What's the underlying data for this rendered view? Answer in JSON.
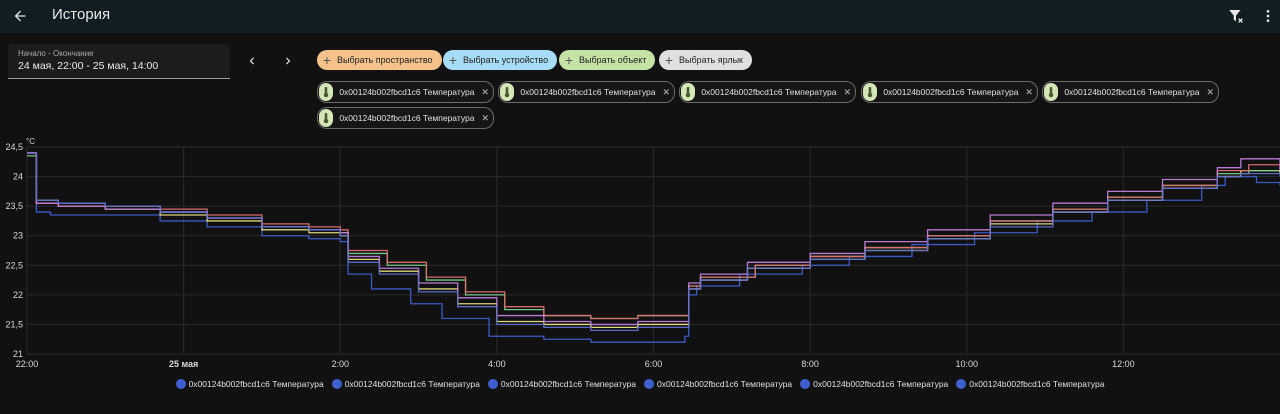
{
  "header": {
    "title": "История",
    "back_icon": "arrow-left-icon",
    "filter_clear_icon": "filter-remove-icon",
    "menu_icon": "dots-vertical-icon"
  },
  "date_range": {
    "label": "Начало - Окончание",
    "value": "24 мая, 22:00 - 25 мая, 14:00"
  },
  "target_pickers": [
    {
      "label": "Выбрать пространство",
      "color": "#f6c28b"
    },
    {
      "label": "Выбрать устройство",
      "color": "#a6dcf5"
    },
    {
      "label": "Выбрать объект",
      "color": "#c5e3a5"
    },
    {
      "label": "Выбрать ярлык",
      "color": "#e0e0e0"
    }
  ],
  "entities": [
    {
      "name": "0x00124b002fbcd1c6 Температура",
      "icon": "thermometer-icon"
    },
    {
      "name": "0x00124b002fbcd1c6 Температура",
      "icon": "thermometer-icon"
    },
    {
      "name": "0x00124b002fbcd1c6 Температура",
      "icon": "thermometer-icon"
    },
    {
      "name": "0x00124b002fbcd1c6 Температура",
      "icon": "thermometer-icon"
    },
    {
      "name": "0x00124b002fbcd1c6 Температура",
      "icon": "thermometer-icon"
    },
    {
      "name": "0x00124b002fbcd1c6 Температура",
      "icon": "thermometer-icon"
    }
  ],
  "chart_data": {
    "type": "line",
    "unit_label": "°C",
    "ylim": [
      21,
      24.5
    ],
    "y_ticks": [
      "21",
      "21,5",
      "22",
      "22,5",
      "23",
      "23,5",
      "24",
      "24,5"
    ],
    "x_ticks": [
      "22:00",
      "25 мая",
      "2:00",
      "4:00",
      "6:00",
      "8:00",
      "10:00",
      "12:00"
    ],
    "x_range_hours": [
      22,
      38
    ],
    "grid": true,
    "legend_position": "bottom",
    "series": [
      {
        "name": "0x00124b002fbcd1c6 Температура",
        "color": "#3f5fcf",
        "x": [
          22.0,
          22.12,
          22.3,
          23.0,
          23.7,
          24.3,
          25.0,
          25.6,
          26.0,
          26.1,
          26.4,
          26.9,
          27.3,
          27.9,
          28.6,
          29.2,
          29.8,
          30.3,
          30.4,
          30.45,
          30.55,
          31.1,
          31.9,
          32.5,
          33.3,
          34.1,
          34.9,
          35.6,
          36.3,
          37.0,
          37.3,
          37.7,
          38.0
        ],
        "y": [
          24.4,
          23.4,
          23.35,
          23.35,
          23.25,
          23.15,
          23.0,
          22.95,
          22.9,
          22.35,
          22.1,
          21.85,
          21.6,
          21.3,
          21.25,
          21.2,
          21.2,
          21.2,
          21.3,
          22.0,
          22.15,
          22.35,
          22.5,
          22.65,
          22.85,
          23.05,
          23.25,
          23.4,
          23.6,
          23.85,
          24.0,
          23.9,
          23.85
        ]
      },
      {
        "name": "0x00124b002fbcd1c6 Температура",
        "color": "#e8e080",
        "x": [
          22.0,
          22.12,
          22.4,
          23.0,
          23.7,
          24.3,
          25.0,
          25.6,
          26.0,
          26.1,
          26.5,
          27.0,
          27.5,
          28.0,
          28.6,
          29.2,
          29.8,
          30.4,
          30.45,
          30.6,
          31.2,
          32.0,
          32.7,
          33.5,
          34.3,
          35.1,
          35.8,
          36.5,
          37.2,
          37.5,
          38.0
        ],
        "y": [
          24.4,
          23.55,
          23.5,
          23.45,
          23.35,
          23.25,
          23.1,
          23.05,
          23.0,
          22.6,
          22.4,
          22.1,
          21.85,
          21.55,
          21.5,
          21.45,
          21.5,
          21.5,
          22.1,
          22.25,
          22.45,
          22.6,
          22.75,
          22.95,
          23.2,
          23.4,
          23.6,
          23.8,
          24.0,
          24.1,
          24.05
        ]
      },
      {
        "name": "0x00124b002fbcd1c6 Температура",
        "color": "#7ad08c",
        "x": [
          22.0,
          22.12,
          22.4,
          23.0,
          23.7,
          24.3,
          25.0,
          25.6,
          26.0,
          26.1,
          26.6,
          27.1,
          27.6,
          28.1,
          28.6,
          29.2,
          29.8,
          30.4,
          30.45,
          30.6,
          31.3,
          32.0,
          32.7,
          33.5,
          34.3,
          35.1,
          35.8,
          36.5,
          37.2,
          37.6,
          38.0
        ],
        "y": [
          24.35,
          23.6,
          23.55,
          23.5,
          23.4,
          23.3,
          23.15,
          23.1,
          23.05,
          22.7,
          22.5,
          22.25,
          22.0,
          21.75,
          21.65,
          21.6,
          21.65,
          21.65,
          22.15,
          22.3,
          22.5,
          22.65,
          22.8,
          23.0,
          23.25,
          23.45,
          23.65,
          23.85,
          24.05,
          24.1,
          24.1
        ]
      },
      {
        "name": "0x00124b002fbcd1c6 Температура",
        "color": "#e07070",
        "x": [
          22.0,
          22.12,
          22.4,
          23.0,
          23.7,
          24.3,
          25.0,
          25.6,
          26.0,
          26.1,
          26.6,
          27.1,
          27.6,
          28.1,
          28.6,
          29.2,
          29.8,
          30.4,
          30.45,
          30.6,
          31.3,
          32.0,
          32.7,
          33.5,
          34.3,
          35.1,
          35.8,
          36.5,
          37.2,
          37.6,
          38.0
        ],
        "y": [
          24.4,
          23.55,
          23.5,
          23.5,
          23.45,
          23.35,
          23.2,
          23.15,
          23.1,
          22.75,
          22.55,
          22.3,
          22.05,
          21.8,
          21.65,
          21.6,
          21.65,
          21.65,
          22.15,
          22.3,
          22.5,
          22.65,
          22.8,
          23.0,
          23.25,
          23.45,
          23.65,
          23.85,
          24.1,
          24.2,
          24.1
        ]
      },
      {
        "name": "0x00124b002fbcd1c6 Температура",
        "color": "#c47fe0",
        "x": [
          22.0,
          22.12,
          22.4,
          23.0,
          23.7,
          24.3,
          25.0,
          25.6,
          26.0,
          26.1,
          26.5,
          27.0,
          27.5,
          28.0,
          28.6,
          29.2,
          29.8,
          30.4,
          30.45,
          30.6,
          31.2,
          32.0,
          32.7,
          33.5,
          34.3,
          35.1,
          35.8,
          36.5,
          37.2,
          37.5,
          38.0
        ],
        "y": [
          24.4,
          23.55,
          23.5,
          23.45,
          23.4,
          23.3,
          23.15,
          23.1,
          23.05,
          22.65,
          22.45,
          22.2,
          21.95,
          21.65,
          21.55,
          21.5,
          21.55,
          21.55,
          22.2,
          22.35,
          22.55,
          22.7,
          22.9,
          23.1,
          23.35,
          23.55,
          23.75,
          23.95,
          24.15,
          24.3,
          24.1
        ]
      },
      {
        "name": "0x00124b002fbcd1c6 Температура",
        "color": "#6070d0",
        "x": [
          22.0,
          22.12,
          22.4,
          23.0,
          23.7,
          24.3,
          25.0,
          25.6,
          26.0,
          26.1,
          26.5,
          27.0,
          27.5,
          28.0,
          28.6,
          29.2,
          29.8,
          30.4,
          30.45,
          30.6,
          31.2,
          32.0,
          32.7,
          33.5,
          34.3,
          35.1,
          35.8,
          36.5,
          37.2,
          37.5,
          38.0
        ],
        "y": [
          24.4,
          23.6,
          23.55,
          23.5,
          23.4,
          23.3,
          23.15,
          23.1,
          23.0,
          22.55,
          22.35,
          22.05,
          21.8,
          21.5,
          21.45,
          21.4,
          21.45,
          21.45,
          22.1,
          22.25,
          22.45,
          22.6,
          22.75,
          22.95,
          23.15,
          23.4,
          23.6,
          23.8,
          24.0,
          24.05,
          24.0
        ]
      }
    ]
  }
}
